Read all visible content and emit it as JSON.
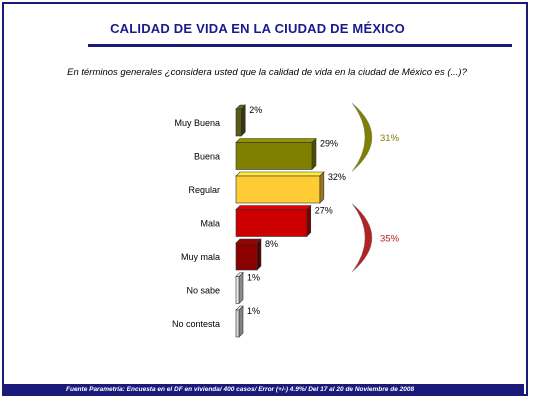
{
  "title": "CALIDAD DE VIDA EN LA CIUDAD DE MÉXICO",
  "question": "En términos generales ¿considera usted que la calidad de vida en la ciudad de México es (...)?",
  "footer": "Fuente Parametría: Encuesta en el DF en vivienda/ 400 casos/ Error (+/-) 4.9%/ Del 17 al 20 de Noviembre de 2008",
  "chart_data": {
    "type": "bar",
    "orientation": "horizontal",
    "categories": [
      "Muy Buena",
      "Buena",
      "Regular",
      "Mala",
      "Muy mala",
      "No sabe",
      "No contesta"
    ],
    "values": [
      2,
      29,
      32,
      27,
      8,
      1,
      1
    ],
    "value_labels": [
      "2%",
      "29%",
      "32%",
      "27%",
      "8%",
      "1%",
      "1%"
    ],
    "colors": [
      "#5a5a1a",
      "#808000",
      "#ffcc33",
      "#cc0000",
      "#8b0000",
      "#e8e8e8",
      "#d8d8d8"
    ],
    "xlim": [
      0,
      100
    ],
    "grid": false,
    "annotations": [
      {
        "label": "31%",
        "color": "#808000",
        "groups": [
          "Muy Buena",
          "Buena"
        ]
      },
      {
        "label": "35%",
        "color": "#b22222",
        "groups": [
          "Mala",
          "Muy mala"
        ]
      }
    ]
  }
}
